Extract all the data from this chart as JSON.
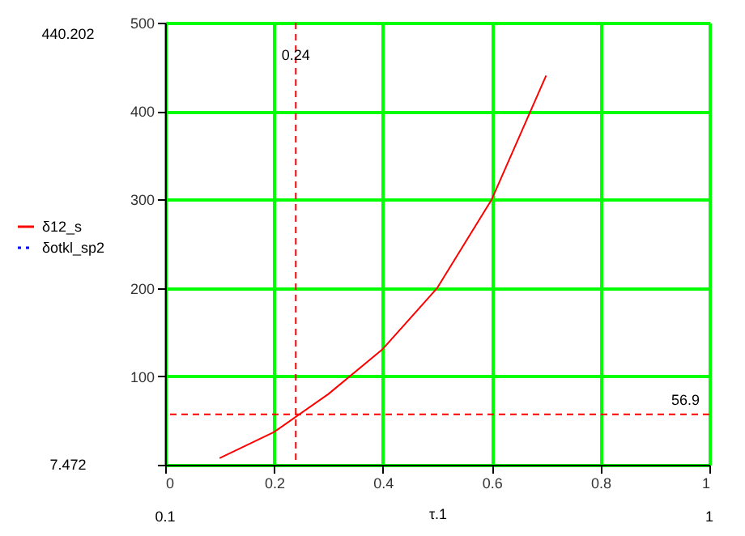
{
  "chart_data": {
    "type": "line",
    "xlabel": "τ.1",
    "x": [
      0.1,
      0.2,
      0.3,
      0.4,
      0.5,
      0.6,
      0.7
    ],
    "series": [
      {
        "name": "δ12_s",
        "color": "#ff0000",
        "line_style": "solid",
        "values": [
          7.472,
          37,
          80,
          131,
          200,
          300,
          440.202
        ]
      },
      {
        "name": "δotkl_sp2",
        "color": "#0000ff",
        "line_style": "dotted",
        "values": [
          null,
          null,
          null,
          null,
          null,
          null,
          null
        ]
      }
    ],
    "xlim": [
      0,
      1
    ],
    "xticks": [
      0,
      0.2,
      0.4,
      0.6,
      0.8,
      1
    ],
    "ylim": [
      0,
      500
    ],
    "yticks": [
      {
        "value": 0,
        "label": null
      },
      100,
      200,
      300,
      400,
      500
    ],
    "grid": true,
    "legend": "left",
    "ref_lines": [
      {
        "axis": "x",
        "value": 0.24,
        "label": "0.24",
        "color": "#ff0000",
        "line_style": "dashed"
      },
      {
        "axis": "y",
        "value": 56.9,
        "label": "56.9",
        "color": "#ff0000",
        "line_style": "dashed"
      }
    ],
    "annotations": [
      "440.202",
      "7.472",
      "0.1",
      "1"
    ]
  }
}
